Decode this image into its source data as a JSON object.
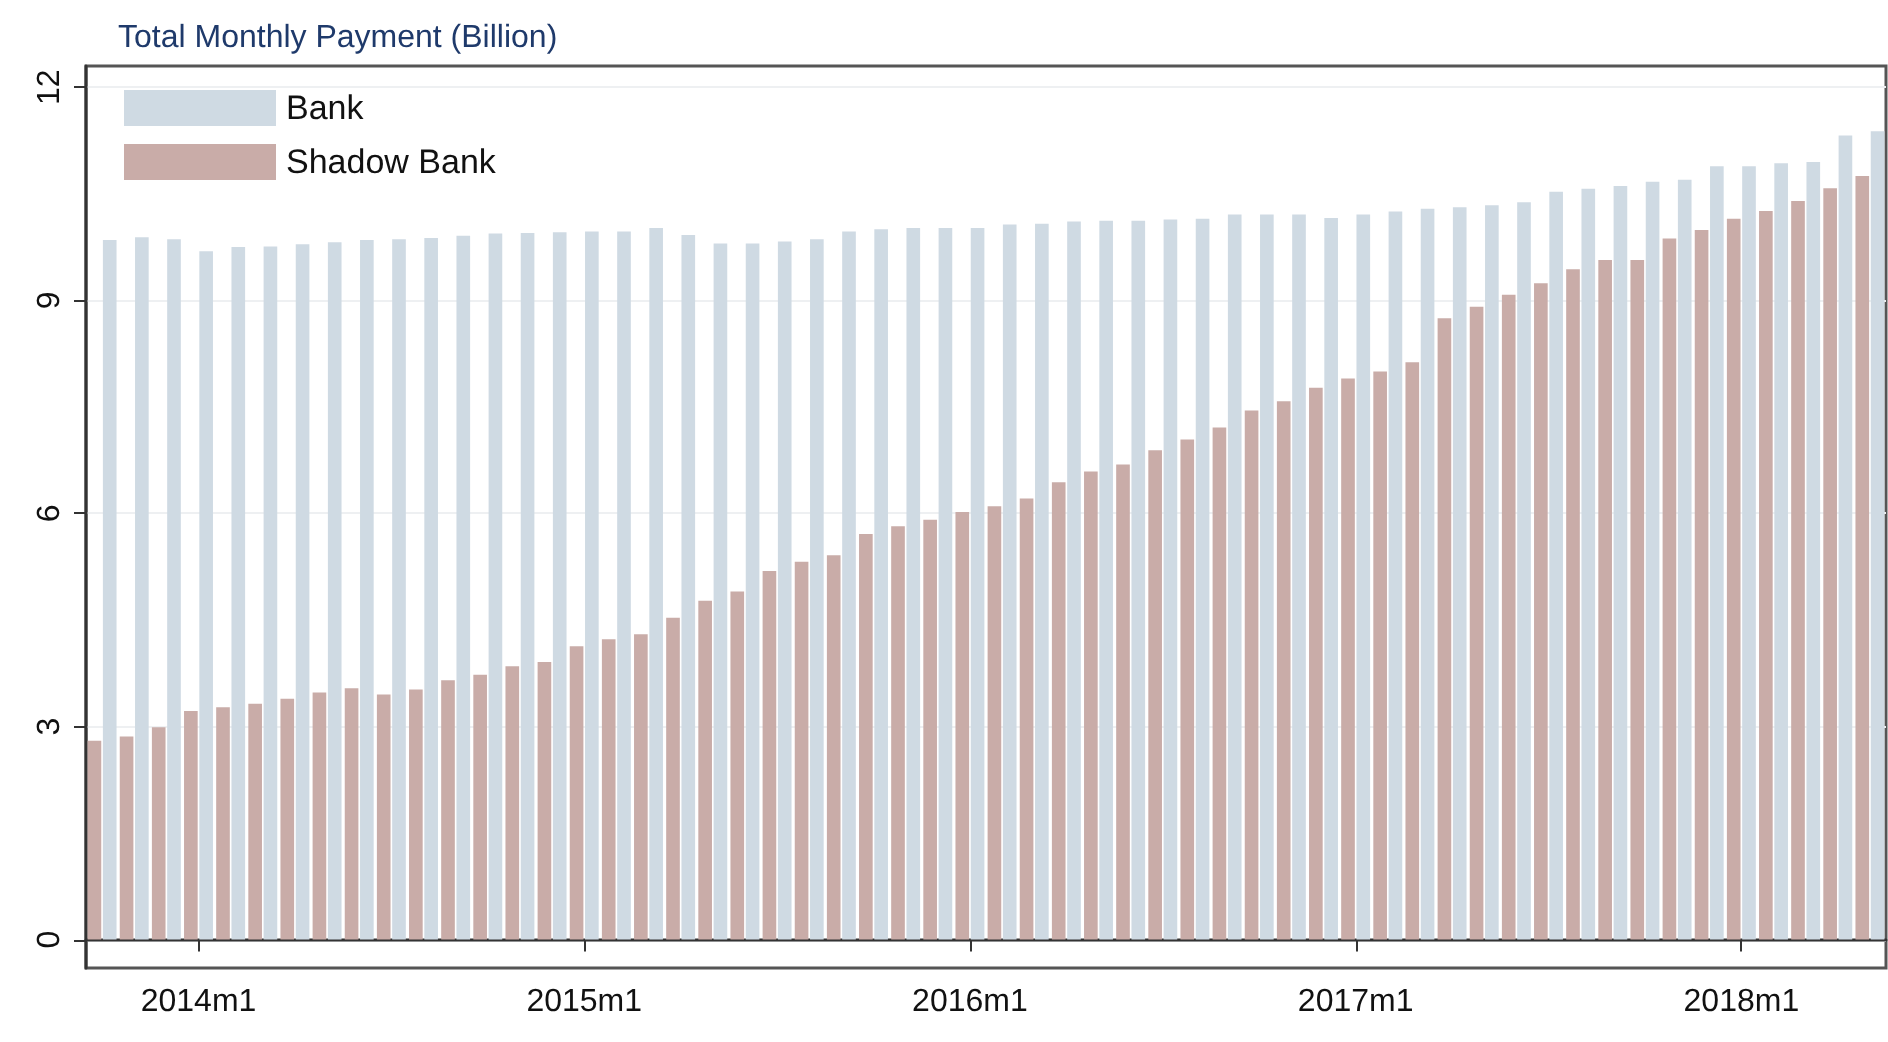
{
  "chart_data": {
    "type": "bar",
    "title": "Total Monthly Payment (Billion)",
    "categories": [
      null,
      null,
      null,
      "2014m1",
      null,
      null,
      null,
      null,
      null,
      null,
      null,
      null,
      null,
      null,
      null,
      "2015m1",
      null,
      null,
      null,
      null,
      null,
      null,
      null,
      null,
      null,
      null,
      null,
      "2016m1",
      null,
      null,
      null,
      null,
      null,
      null,
      null,
      null,
      null,
      null,
      null,
      "2017m1",
      null,
      null,
      null,
      null,
      null,
      null,
      null,
      null,
      null,
      null,
      null,
      "2018m1",
      null,
      null,
      null,
      null
    ],
    "series": [
      {
        "name": "Bank",
        "color": "#cfdae3",
        "values": [
          9.85,
          9.89,
          9.86,
          9.69,
          9.75,
          9.76,
          9.79,
          9.82,
          9.85,
          9.86,
          9.88,
          9.91,
          9.94,
          9.95,
          9.96,
          9.97,
          9.97,
          10.02,
          9.92,
          9.8,
          9.8,
          9.83,
          9.86,
          9.97,
          10.0,
          10.02,
          10.02,
          10.02,
          10.07,
          10.08,
          10.11,
          10.12,
          10.12,
          10.14,
          10.15,
          10.21,
          10.21,
          10.21,
          10.16,
          10.21,
          10.25,
          10.29,
          10.31,
          10.34,
          10.38,
          10.53,
          10.57,
          10.61,
          10.67,
          10.7,
          10.89,
          10.89,
          10.93,
          10.95,
          11.32,
          11.38
        ]
      },
      {
        "name": "Shadow Bank",
        "color": "#c9aca8",
        "values": [
          2.8,
          2.86,
          2.99,
          3.22,
          3.27,
          3.32,
          3.39,
          3.48,
          3.54,
          3.45,
          3.52,
          3.65,
          3.73,
          3.85,
          3.91,
          4.13,
          4.23,
          4.3,
          4.53,
          4.77,
          4.9,
          5.19,
          5.32,
          5.41,
          5.71,
          5.82,
          5.91,
          6.02,
          6.1,
          6.21,
          6.44,
          6.59,
          6.69,
          6.89,
          7.04,
          7.21,
          7.45,
          7.58,
          7.77,
          7.9,
          8.0,
          8.13,
          8.75,
          8.91,
          9.08,
          9.24,
          9.44,
          9.57,
          9.57,
          9.87,
          9.99,
          10.15,
          10.26,
          10.4,
          10.58,
          10.75
        ]
      }
    ],
    "ylim": [
      -0.4,
      12.3
    ],
    "yticks": [
      0,
      3,
      6,
      9,
      12
    ],
    "grid": "y",
    "legend": "top left"
  }
}
